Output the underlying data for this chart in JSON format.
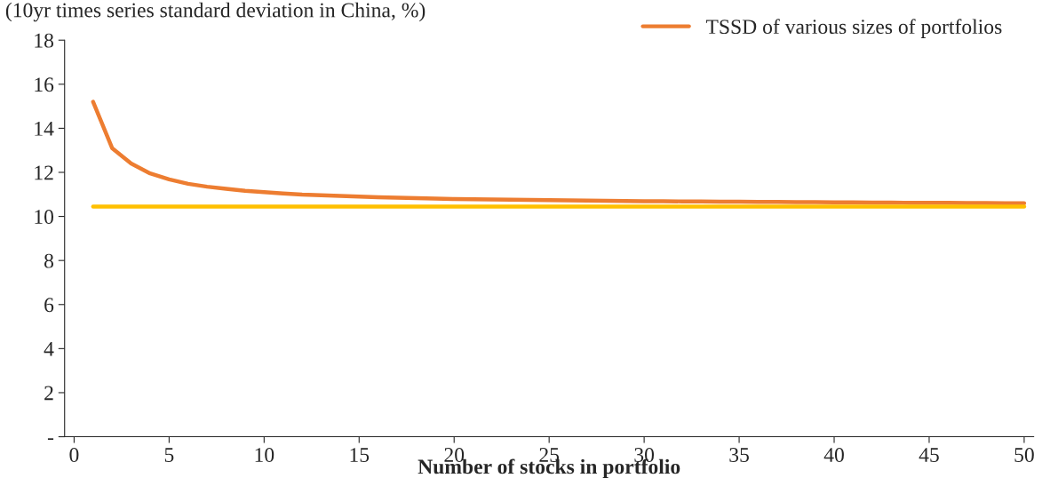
{
  "chart_data": {
    "type": "line",
    "ylabel": "(10yr times series standard deviation in China, %)",
    "xlabel": "Number of stocks in portfolio",
    "x": [
      1,
      2,
      3,
      4,
      5,
      6,
      7,
      8,
      9,
      10,
      11,
      12,
      13,
      14,
      15,
      16,
      17,
      18,
      19,
      20,
      21,
      22,
      23,
      24,
      25,
      26,
      27,
      28,
      29,
      30,
      31,
      32,
      33,
      34,
      35,
      36,
      37,
      38,
      39,
      40,
      41,
      42,
      43,
      44,
      45,
      46,
      47,
      48,
      49,
      50
    ],
    "series": [
      {
        "name": "TSSD of various sizes of portfolios",
        "color": "#ed7d31",
        "values": [
          15.2,
          13.1,
          12.4,
          11.95,
          11.68,
          11.48,
          11.35,
          11.25,
          11.16,
          11.1,
          11.04,
          10.99,
          10.96,
          10.93,
          10.9,
          10.87,
          10.85,
          10.83,
          10.81,
          10.79,
          10.78,
          10.77,
          10.76,
          10.75,
          10.74,
          10.73,
          10.72,
          10.71,
          10.7,
          10.69,
          10.69,
          10.68,
          10.68,
          10.67,
          10.67,
          10.66,
          10.66,
          10.65,
          10.65,
          10.64,
          10.64,
          10.63,
          10.63,
          10.62,
          10.62,
          10.62,
          10.61,
          10.61,
          10.6,
          10.6
        ]
      },
      {
        "color": "#ffc000",
        "values": [
          10.45,
          10.45,
          10.45,
          10.45,
          10.45,
          10.45,
          10.45,
          10.45,
          10.45,
          10.45,
          10.45,
          10.45,
          10.45,
          10.45,
          10.45,
          10.45,
          10.45,
          10.45,
          10.45,
          10.45,
          10.45,
          10.45,
          10.45,
          10.45,
          10.45,
          10.45,
          10.45,
          10.45,
          10.45,
          10.45,
          10.45,
          10.45,
          10.45,
          10.45,
          10.45,
          10.45,
          10.45,
          10.45,
          10.45,
          10.45,
          10.45,
          10.45,
          10.45,
          10.45,
          10.45,
          10.45,
          10.45,
          10.45,
          10.45,
          10.45
        ]
      }
    ],
    "xlim": [
      -0.5,
      50.5
    ],
    "xticks": [
      0,
      5,
      10,
      15,
      20,
      25,
      30,
      35,
      40,
      45,
      50
    ],
    "ylim": [
      0,
      18
    ],
    "yticks": [
      {
        "value": 0,
        "label": "-"
      },
      2,
      4,
      6,
      8,
      10,
      12,
      14,
      16,
      18
    ],
    "grid": false,
    "legend": "top right"
  }
}
